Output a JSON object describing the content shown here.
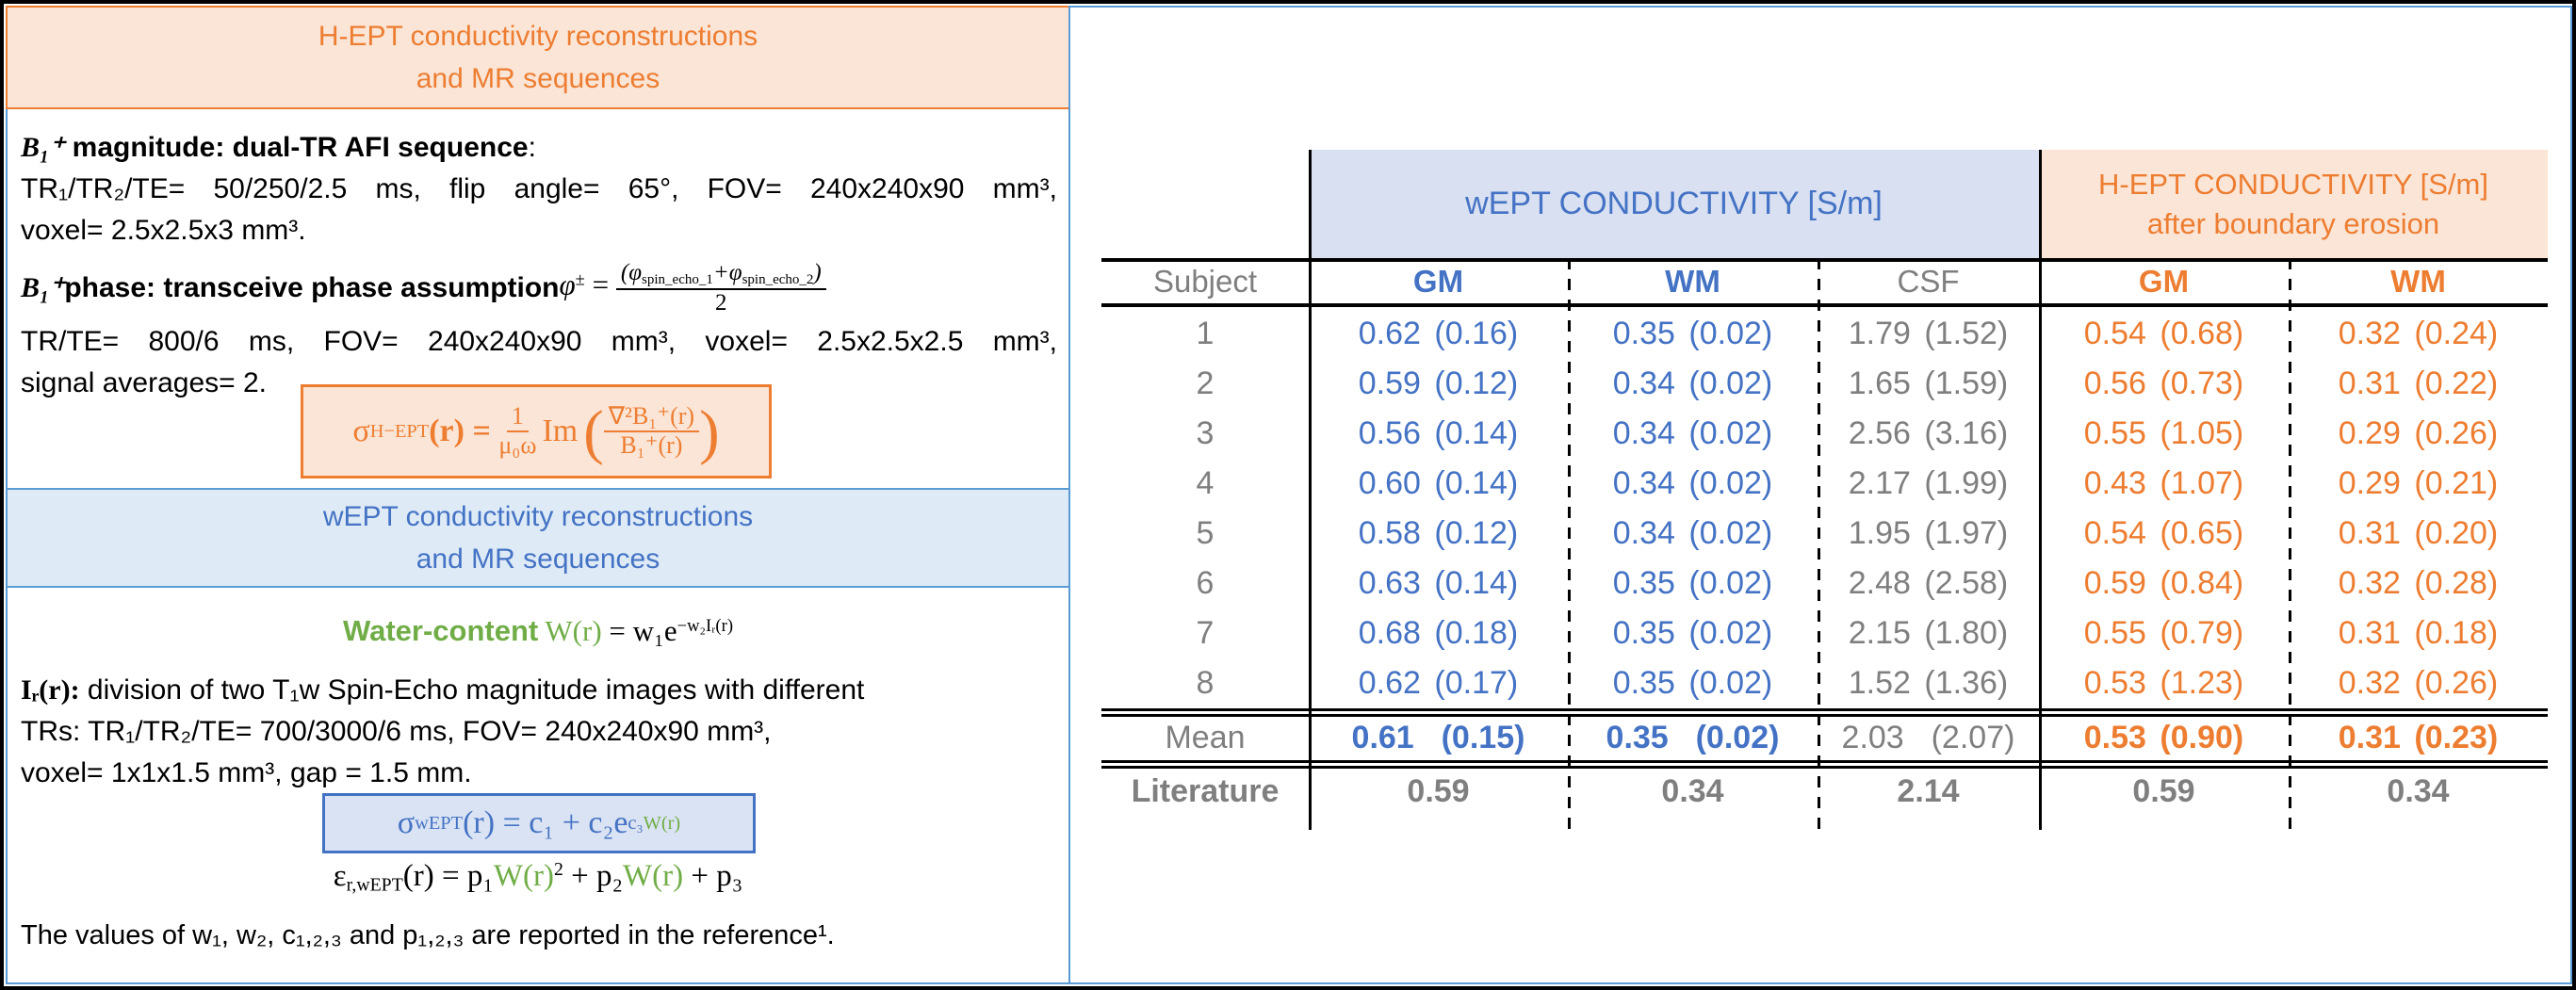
{
  "colors": {
    "orange": "#ED7D31",
    "orange_fill": "#FBE5D6",
    "blue": "#4472C4",
    "blue_border": "#5B9BD5",
    "blue_band_fill": "#D8E0F2",
    "blue_header_fill": "#DEEBF7",
    "blue_box_fill": "#DAE3F3",
    "gray": "#7F7F7F",
    "green": "#70AD47"
  },
  "left_panel": {
    "hept_header": {
      "line1": "H-EPT conductivity reconstructions",
      "line2": "and MR sequences"
    },
    "b1_magnitude": {
      "lead_symbol": "B₁⁺",
      "lead_bold": " magnitude: dual-TR AFI sequence",
      "lead_end": ":",
      "line2": "TR₁/TR₂/TE= 50/250/2.5 ms, flip angle= 65°, FOV= 240x240x90 mm³,",
      "line3": "voxel= 2.5x2.5x3 mm³."
    },
    "b1_phase": {
      "lead_symbol": "B₁⁺",
      "lead_bold": " phase: transceive phase assumption ",
      "phi": "φ",
      "pm": "±",
      "eq": "=",
      "num1": "(φ",
      "num1_sub": "spin_echo_1",
      "num2": "+φ",
      "num2_sub": "spin_echo_2",
      "num3": ")",
      "den": "2",
      "line2": "TR/TE= 800/6 ms, FOV= 240x240x90 mm³, voxel= 2.5x2.5x2.5 mm³,",
      "line3": "signal averages= 2."
    },
    "hept_formula": {
      "sigma": "σ",
      "sub": "H−EPT",
      "lhs": "(r) =",
      "f1num": "1",
      "f1den": "μ₀ω",
      "im": "Im",
      "paren_l": "(",
      "f2num": "∇²B₁⁺(r)",
      "f2den": "B₁⁺(r)",
      "paren_r": ")"
    },
    "wept_header": {
      "line1": "wEPT conductivity reconstructions",
      "line2": "and MR sequences"
    },
    "water_formula": {
      "label": "Water-content",
      "W": " W(r)",
      "eq": " = w₁e",
      "sup": "−w₂Iᵣ(r)"
    },
    "ir_paragraph": {
      "lead": "Iᵣ(r):",
      "line1_rest": " division of two T₁w Spin-Echo magnitude images with different",
      "line2": "TRs: TR₁/TR₂/TE= 700/3000/6 ms, FOV= 240x240x90 mm³,",
      "line3": "voxel= 1x1x1.5 mm³, gap = 1.5 mm."
    },
    "wept_formula": {
      "sigma": "σ",
      "sub": "wEPT",
      "mid": "(r) = c₁ + c₂e",
      "sup_c": "c₃",
      "sup_w": "W(r)"
    },
    "eps_formula": {
      "eps": "ε",
      "sub": "r,wEPT",
      "eq": "(r) = p₁",
      "w1": "W(r)",
      "sq": "2",
      "plus2": " + p₂",
      "w2": "W(r)",
      "end": " + p₃"
    },
    "footnote": "The values of w₁, w₂, c₁,₂,₃ and p₁,₂,₃ are reported in the reference¹."
  },
  "table": {
    "wept_band": "wEPT CONDUCTIVITY [S/m]",
    "hept_band_line1": "H-EPT CONDUCTIVITY [S/m]",
    "hept_band_line2": "after boundary erosion",
    "columns": [
      {
        "label": "Subject",
        "color": "gray",
        "bold": false
      },
      {
        "label": "GM",
        "color": "blue",
        "bold": true
      },
      {
        "label": "WM",
        "color": "blue",
        "bold": true
      },
      {
        "label": "CSF",
        "color": "gray",
        "bold": false
      },
      {
        "label": "GM",
        "color": "orange",
        "bold": true
      },
      {
        "label": "WM",
        "color": "orange",
        "bold": true
      }
    ],
    "rows": [
      {
        "label": "1",
        "cells": [
          "0.62 (0.16)",
          "0.35 (0.02)",
          "1.79 (1.52)",
          "0.54 (0.68)",
          "0.32 (0.24)"
        ]
      },
      {
        "label": "2",
        "cells": [
          "0.59 (0.12)",
          "0.34 (0.02)",
          "1.65 (1.59)",
          "0.56 (0.73)",
          "0.31 (0.22)"
        ]
      },
      {
        "label": "3",
        "cells": [
          "0.56 (0.14)",
          "0.34 (0.02)",
          "2.56 (3.16)",
          "0.55 (1.05)",
          "0.29 (0.26)"
        ]
      },
      {
        "label": "4",
        "cells": [
          "0.60 (0.14)",
          "0.34 (0.02)",
          "2.17 (1.99)",
          "0.43 (1.07)",
          "0.29 (0.21)"
        ]
      },
      {
        "label": "5",
        "cells": [
          "0.58 (0.12)",
          "0.34 (0.02)",
          "1.95 (1.97)",
          "0.54 (0.65)",
          "0.31 (0.20)"
        ]
      },
      {
        "label": "6",
        "cells": [
          "0.63 (0.14)",
          "0.35 (0.02)",
          "2.48 (2.58)",
          "0.59 (0.84)",
          "0.32 (0.28)"
        ]
      },
      {
        "label": "7",
        "cells": [
          "0.68 (0.18)",
          "0.35 (0.02)",
          "2.15 (1.80)",
          "0.55 (0.79)",
          "0.31 (0.18)"
        ]
      },
      {
        "label": "8",
        "cells": [
          "0.62 (0.17)",
          "0.35 (0.02)",
          "1.52 (1.36)",
          "0.53 (1.23)",
          "0.32 (0.26)"
        ]
      }
    ],
    "mean_row": {
      "label": "Mean",
      "cells": [
        "0.61  (0.15)",
        "0.35  (0.02)",
        "2.03  (2.07)",
        "0.53 (0.90)",
        "0.31 (0.23)"
      ],
      "bold_mask": [
        true,
        true,
        false,
        true,
        true
      ]
    },
    "literature_row": {
      "label": "Literature",
      "cells": [
        "0.59",
        "0.34",
        "2.14",
        "0.59",
        "0.34"
      ]
    }
  }
}
